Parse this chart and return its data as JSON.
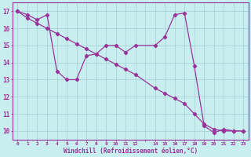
{
  "xlabel": "Windchill (Refroidissement éolien,°C)",
  "background_color": "#c8eef0",
  "grid_color": "#aad4d8",
  "line_color": "#993399",
  "ylim": [
    9.5,
    17.5
  ],
  "xlim": [
    -0.5,
    23.5
  ],
  "yticks": [
    10,
    11,
    12,
    13,
    14,
    15,
    16,
    17
  ],
  "xtick_positions": [
    0,
    1,
    2,
    3,
    4,
    5,
    6,
    7,
    8,
    9,
    10,
    11,
    12,
    13,
    14,
    15,
    16,
    17,
    18,
    19,
    20,
    21,
    22,
    23
  ],
  "xtick_labels": [
    "0",
    "1",
    "2",
    "3",
    "4",
    "5",
    "6",
    "7",
    "8",
    "9",
    "10",
    "11",
    "12",
    "",
    "14",
    "15",
    "16",
    "17",
    "18",
    "19",
    "20",
    "21",
    "22",
    "23"
  ],
  "line1_x": [
    0,
    1,
    2,
    3,
    4,
    5,
    6,
    7,
    8,
    9,
    10,
    11,
    12,
    14,
    15,
    16,
    17,
    18,
    19,
    20,
    21,
    22,
    23
  ],
  "line1_y": [
    17.0,
    16.8,
    16.5,
    16.8,
    13.5,
    13.0,
    13.0,
    14.4,
    14.5,
    15.0,
    15.0,
    14.6,
    15.0,
    15.0,
    15.5,
    16.8,
    16.9,
    13.8,
    10.3,
    9.9,
    10.1,
    10.0,
    10.0
  ],
  "line2_x": [
    0,
    1,
    2,
    3,
    4,
    5,
    6,
    7,
    8,
    9,
    10,
    11,
    12,
    14,
    15,
    16,
    17,
    18,
    19,
    20,
    21,
    22,
    23
  ],
  "line2_y": [
    17.0,
    16.6,
    16.3,
    16.0,
    15.7,
    15.4,
    15.1,
    14.8,
    14.5,
    14.2,
    13.9,
    13.6,
    13.3,
    12.5,
    12.2,
    11.9,
    11.6,
    11.0,
    10.4,
    10.1,
    10.0,
    10.0,
    10.0
  ]
}
